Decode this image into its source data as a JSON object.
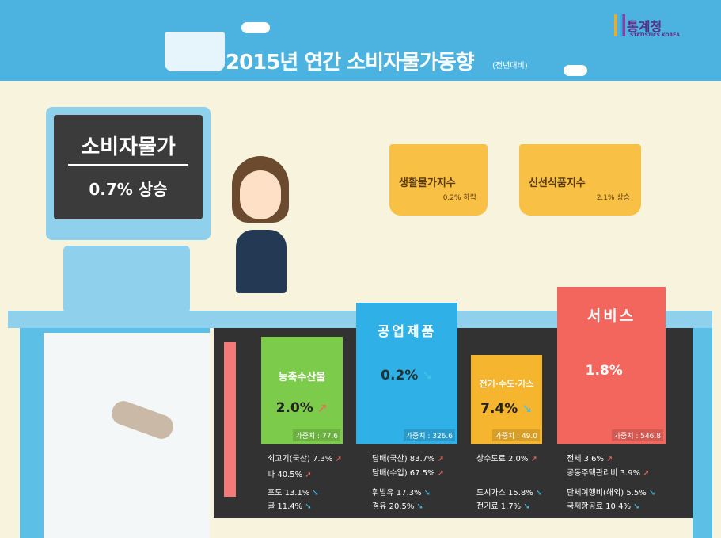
{
  "header": {
    "title": "2015년 연간 소비자물가동향",
    "subtitle": "(전년대비)",
    "logo": "통계청",
    "logo_sub": "STATISTICS KOREA"
  },
  "colors": {
    "header": "#4cb3e1",
    "background": "#f8f3dd",
    "agri": "#7ccb4a",
    "industrial": "#2fb0e6",
    "utilities": "#f6b52e",
    "services": "#f2665e",
    "up_arrow": "#f2665e",
    "down_arrow": "#3ec2ee"
  },
  "cpi": {
    "label": "소비자물가",
    "value": "0.7% 상승"
  },
  "baskets": [
    {
      "name": "생활물가지수",
      "value": "0.2% 하락"
    },
    {
      "name": "신선식품지수",
      "value": "2.1% 상승"
    }
  ],
  "categories": [
    {
      "name": "농축수산물",
      "value": "2.0%",
      "direction": "up",
      "weight": "가중치 : 77.6",
      "items": [
        {
          "text": "쇠고기(국산) 7.3%",
          "direction": "up"
        },
        {
          "text": "파 40.5%",
          "direction": "up"
        },
        {
          "text": "포도 13.1%",
          "direction": "down"
        },
        {
          "text": "귤 11.4%",
          "direction": "down"
        }
      ]
    },
    {
      "name": "공업제품",
      "value": "0.2%",
      "direction": "down",
      "weight": "가중치 : 326.6",
      "items": [
        {
          "text": "담배(국산) 83.7%",
          "direction": "up"
        },
        {
          "text": "담배(수입) 67.5%",
          "direction": "up"
        },
        {
          "text": "휘발유 17.3%",
          "direction": "down"
        },
        {
          "text": "경유 20.5%",
          "direction": "down"
        }
      ]
    },
    {
      "name": "전기·수도·가스",
      "value": "7.4%",
      "direction": "down",
      "weight": "가중치 : 49.0",
      "items": [
        {
          "text": "상수도료 2.0%",
          "direction": "up"
        },
        {
          "text": "도시가스 15.8%",
          "direction": "down"
        },
        {
          "text": "전기료 1.7%",
          "direction": "down"
        }
      ]
    },
    {
      "name": "서비스",
      "value": "1.8%",
      "direction": "up",
      "weight": "가중치 : 546.8",
      "items": [
        {
          "text": "전세 3.6%",
          "direction": "up"
        },
        {
          "text": "공동주택관리비 3.9%",
          "direction": "up"
        },
        {
          "text": "단체여행비(해외) 5.5%",
          "direction": "down"
        },
        {
          "text": "국제항공료 10.4%",
          "direction": "down"
        }
      ]
    }
  ]
}
